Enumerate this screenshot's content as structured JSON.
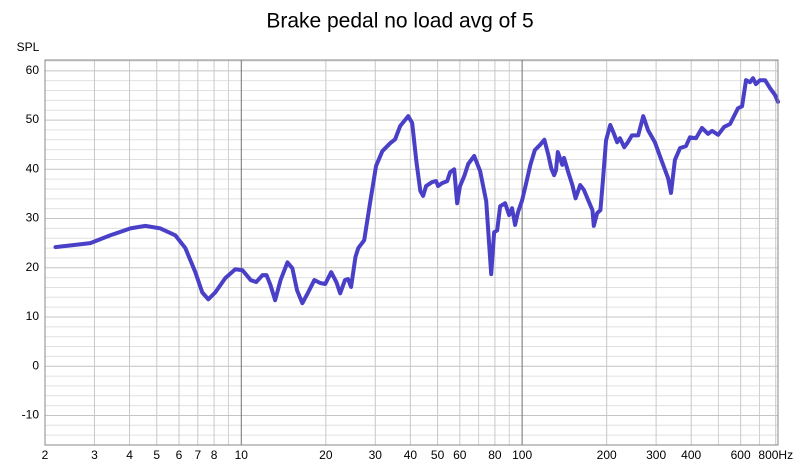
{
  "chart_data": {
    "type": "line",
    "title": "Brake pedal no load avg of 5",
    "y_label": "SPL",
    "x": [
      2.18,
      2.9,
      3.42,
      4.03,
      4.55,
      5.15,
      5.82,
      6.32,
      6.86,
      7.26,
      7.63,
      8.08,
      8.77,
      9.52,
      10.1,
      10.8,
      11.3,
      11.9,
      12.3,
      12.7,
      13.2,
      13.8,
      14.6,
      15.2,
      15.8,
      16.5,
      17.3,
      18.2,
      19.1,
      19.9,
      20.9,
      21.8,
      22.5,
      23.4,
      24.0,
      24.6,
      25.5,
      26.1,
      27.4,
      28.8,
      30.2,
      31.8,
      33.9,
      35.3,
      36.8,
      39.3,
      40.6,
      42.0,
      43.4,
      44.4,
      45.5,
      47.8,
      49.4,
      50.2,
      51.9,
      54.1,
      55.4,
      57.3,
      58.7,
      60.1,
      62.2,
      64.3,
      67.5,
      70.9,
      74.5,
      77.6,
      79.5,
      81.5,
      83.5,
      87.0,
      89.9,
      92.1,
      94.4,
      96.7,
      100,
      103,
      107,
      111,
      116,
      120,
      124,
      127,
      130,
      132,
      134,
      139,
      141,
      146,
      151,
      155,
      161,
      166,
      172,
      178,
      180,
      185,
      190,
      194,
      199,
      206,
      211,
      218,
      223,
      231,
      238,
      246,
      259,
      270,
      281,
      297,
      315,
      331,
      339,
      350,
      365,
      383,
      396,
      416,
      437,
      459,
      475,
      499,
      524,
      550,
      587,
      607,
      627,
      648,
      664,
      680,
      703,
      733,
      763,
      795,
      815
    ],
    "series": [
      {
        "name": "SPL",
        "color": "#4a40c8",
        "values": [
          24.2,
          25.0,
          26.6,
          28.0,
          28.5,
          28.0,
          26.6,
          24.0,
          19.1,
          15.0,
          13.6,
          15.0,
          17.9,
          19.7,
          19.5,
          17.5,
          17.1,
          18.5,
          18.5,
          16.5,
          13.4,
          17.5,
          21.1,
          19.9,
          15.4,
          12.8,
          15.0,
          17.5,
          16.9,
          16.7,
          19.1,
          17.1,
          14.8,
          17.5,
          17.7,
          16.1,
          22.2,
          24.0,
          25.6,
          33.5,
          40.7,
          43.7,
          45.3,
          46.1,
          48.8,
          50.8,
          49.4,
          41.7,
          35.6,
          34.6,
          36.6,
          37.4,
          37.6,
          36.6,
          37.2,
          37.6,
          39.4,
          40.0,
          33.1,
          36.6,
          38.6,
          41.1,
          42.7,
          39.6,
          33.5,
          18.7,
          27.2,
          27.6,
          32.5,
          33.1,
          30.7,
          32.1,
          28.7,
          31.3,
          33.7,
          36.8,
          40.9,
          43.9,
          45.0,
          46.0,
          42.9,
          40.2,
          38.8,
          39.8,
          43.5,
          40.9,
          42.3,
          39.4,
          36.8,
          34.1,
          36.8,
          35.8,
          33.7,
          31.7,
          28.5,
          31.1,
          31.7,
          37.8,
          45.9,
          49.0,
          47.6,
          45.5,
          46.3,
          44.5,
          45.5,
          46.9,
          46.9,
          50.8,
          47.9,
          45.5,
          41.5,
          38.2,
          35.2,
          41.9,
          44.3,
          44.7,
          46.5,
          46.3,
          48.4,
          47.2,
          47.8,
          47.0,
          48.6,
          49.2,
          52.4,
          52.8,
          58.1,
          57.7,
          58.5,
          57.3,
          58.1,
          58.1,
          56.5,
          55.1,
          53.7
        ]
      }
    ],
    "log_x": true,
    "xlim": [
      2,
      815
    ],
    "xticks": [
      2,
      3,
      4,
      5,
      6,
      7,
      8,
      10,
      20,
      30,
      40,
      50,
      60,
      80,
      100,
      200,
      300,
      400,
      600,
      {
        "value": 800,
        "label": "800Hz"
      }
    ],
    "xgrid": [
      9,
      70,
      90,
      500,
      700
    ],
    "ylim": [
      -16,
      62.2
    ],
    "yticks": [
      -10,
      0,
      10,
      20,
      30,
      40,
      50,
      60
    ],
    "ygrid": [
      -14,
      -12,
      -8,
      -6,
      -4,
      -2,
      2,
      4,
      6,
      8,
      12,
      14,
      16,
      18,
      22,
      24,
      26,
      28,
      32,
      34,
      36,
      38,
      42,
      44,
      46,
      48,
      52,
      54,
      56,
      58,
      62
    ],
    "grid": true
  }
}
